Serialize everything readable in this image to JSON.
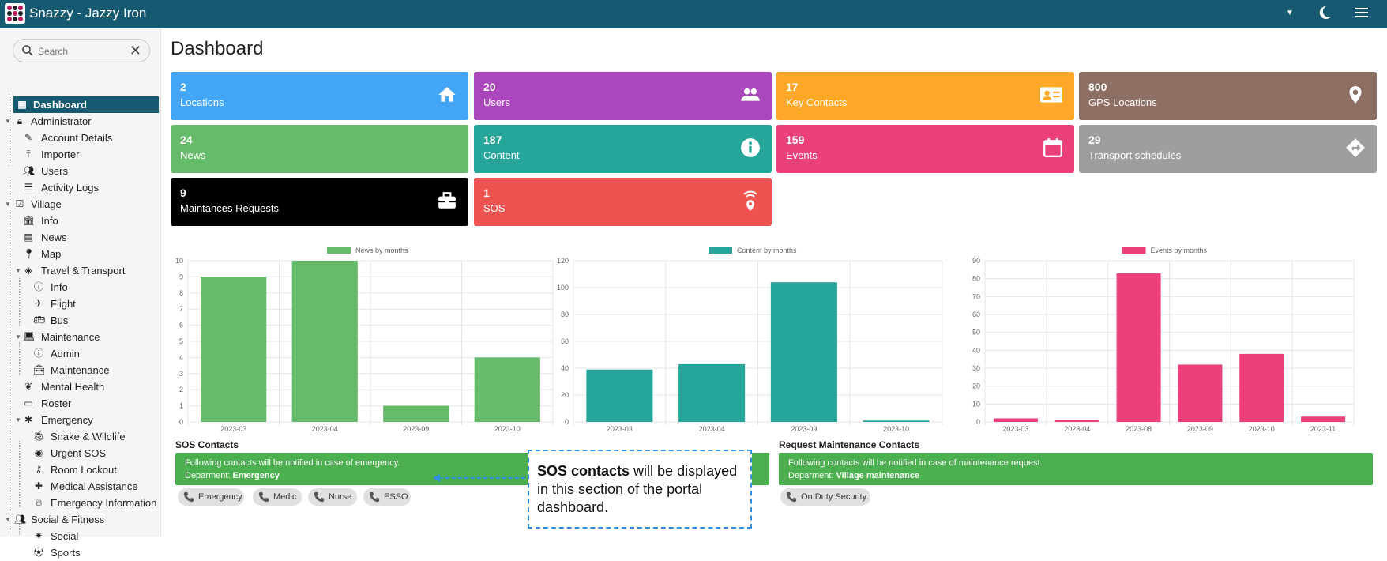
{
  "header": {
    "app_title": "Snazzy - Jazzy Iron"
  },
  "sidebar": {
    "search_placeholder": "Search",
    "items": [
      {
        "label": "Dashboard"
      },
      {
        "label": "Administrator"
      },
      {
        "label": "Account Details"
      },
      {
        "label": "Importer"
      },
      {
        "label": "Users"
      },
      {
        "label": "Activity Logs"
      },
      {
        "label": "Village"
      },
      {
        "label": "Info"
      },
      {
        "label": "News"
      },
      {
        "label": "Map"
      },
      {
        "label": "Travel & Transport"
      },
      {
        "label": "Info"
      },
      {
        "label": "Flight"
      },
      {
        "label": "Bus"
      },
      {
        "label": "Maintenance"
      },
      {
        "label": "Admin"
      },
      {
        "label": "Maintenance"
      },
      {
        "label": "Mental Health"
      },
      {
        "label": "Roster"
      },
      {
        "label": "Emergency"
      },
      {
        "label": "Snake & Wildlife"
      },
      {
        "label": "Urgent SOS"
      },
      {
        "label": "Room Lockout"
      },
      {
        "label": "Medical Assistance"
      },
      {
        "label": "Emergency Information"
      },
      {
        "label": "Social & Fitness"
      },
      {
        "label": "Social"
      },
      {
        "label": "Sports"
      }
    ]
  },
  "main": {
    "page_title": "Dashboard",
    "cards": [
      {
        "value": "2",
        "label": "Locations",
        "color": "#42a5f5",
        "icon": "home-icon"
      },
      {
        "value": "20",
        "label": "Users",
        "color": "#ab47bc",
        "icon": "people-icon"
      },
      {
        "value": "17",
        "label": "Key Contacts",
        "color": "#ffa726",
        "icon": "contact-card-icon"
      },
      {
        "value": "800",
        "label": "GPS Locations",
        "color": "#8d6e63",
        "icon": "map-pin-icon"
      },
      {
        "value": "24",
        "label": "News",
        "color": "#66bb6a",
        "icon": "news-icon"
      },
      {
        "value": "187",
        "label": "Content",
        "color": "#26a69a",
        "icon": "info-icon"
      },
      {
        "value": "159",
        "label": "Events",
        "color": "#ec407a",
        "icon": "calendar-icon"
      },
      {
        "value": "29",
        "label": "Transport schedules",
        "color": "#9e9e9e",
        "icon": "directions-icon"
      },
      {
        "value": "9",
        "label": "Maintances Requests",
        "color": "#000000",
        "icon": "toolbox-icon"
      },
      {
        "value": "1",
        "label": "SOS",
        "color": "#ef5350",
        "icon": "sos-signal-icon"
      }
    ],
    "sos": {
      "title": "SOS Contacts",
      "banner_text": "Following contacts will be notified in case of emergency.",
      "dept_prefix": "Deparment: ",
      "dept_name": "Emergency",
      "chips": [
        "Emergency",
        "Medic",
        "Nurse",
        "ESSO"
      ]
    },
    "maintenance": {
      "title": "Request Maintenance Contacts",
      "banner_text": "Following contacts will be notified in case of maintenance request.",
      "dept_prefix": "Deparment: ",
      "dept_name": "Village maintenance",
      "chips": [
        "On Duty Security"
      ]
    },
    "callout": {
      "bold": "SOS contacts",
      "rest": " will be displayed in this section of the portal dashboard."
    }
  },
  "chart_data": [
    {
      "type": "bar",
      "legend": "News by months",
      "color": "#66bb6a",
      "categories": [
        "2023-03",
        "2023-04",
        "2023-09",
        "2023-10"
      ],
      "values": [
        9,
        10,
        1,
        4
      ],
      "ylim": [
        0,
        10
      ],
      "yticks": [
        0,
        1,
        2,
        3,
        4,
        5,
        6,
        7,
        8,
        9,
        10
      ]
    },
    {
      "type": "bar",
      "legend": "Content by months",
      "color": "#26a69a",
      "categories": [
        "2023-03",
        "2023-04",
        "2023-09",
        "2023-10"
      ],
      "values": [
        39,
        43,
        104,
        1
      ],
      "ylim": [
        0,
        120
      ],
      "yticks": [
        0,
        20,
        40,
        60,
        80,
        100,
        120
      ]
    },
    {
      "type": "bar",
      "legend": "Events by months",
      "color": "#ec407a",
      "categories": [
        "2023-03",
        "2023-04",
        "2023-08",
        "2023-09",
        "2023-10",
        "2023-11"
      ],
      "values": [
        2,
        1,
        83,
        32,
        38,
        3
      ],
      "ylim": [
        0,
        90
      ],
      "yticks": [
        0,
        10,
        20,
        30,
        40,
        50,
        60,
        70,
        80,
        90
      ]
    }
  ]
}
